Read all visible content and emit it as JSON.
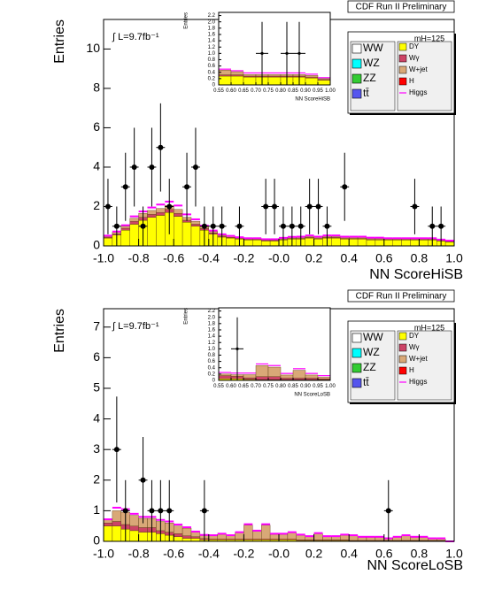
{
  "chart_data": [
    {
      "type": "histogram",
      "title": "CDF Run II Preliminary",
      "x_label": "NN ScoreHiSB",
      "y_label": "Entries",
      "annotation": "∫ L=9.7fb⁻¹",
      "mass_label": "mH=125",
      "bins": [
        -1,
        -0.95,
        -0.9,
        -0.85,
        -0.8,
        -0.75,
        -0.7,
        -0.65,
        -0.6,
        -0.55,
        -0.5,
        -0.45,
        -0.4,
        -0.35,
        -0.3,
        -0.25,
        -0.2,
        -0.15,
        -0.1,
        -0.05,
        0,
        0.05,
        0.1,
        0.15,
        0.2,
        0.25,
        0.3,
        0.35,
        0.4,
        0.45,
        0.5,
        0.55,
        0.6,
        0.65,
        0.7,
        0.75,
        0.8,
        0.85,
        0.9,
        0.95,
        1
      ],
      "xlim": [
        -1,
        1
      ],
      "xticks": [
        {
          "value": -1,
          "label": "-1.0"
        },
        -0.8,
        -0.6,
        -0.4,
        -0.2,
        {
          "value": 0,
          "label": "-0.0"
        },
        0.2,
        0.4,
        0.6,
        0.8,
        {
          "value": 1,
          "label": "1.0"
        }
      ],
      "ylim": [
        0,
        11.5
      ],
      "yticks": [
        0,
        2,
        4,
        6,
        8,
        10
      ],
      "series": [
        {
          "name": "DY",
          "color": "#ffff00",
          "values": [
            0.4,
            0.55,
            0.8,
            1.1,
            1.3,
            1.45,
            1.55,
            1.7,
            1.5,
            1.2,
            1.0,
            0.8,
            0.6,
            0.45,
            0.4,
            0.35,
            0.3,
            0.3,
            0.25,
            0.25,
            0.3,
            0.35,
            0.35,
            0.4,
            0.35,
            0.4,
            0.4,
            0.35,
            0.35,
            0.35,
            0.3,
            0.3,
            0.3,
            0.3,
            0.3,
            0.3,
            0.3,
            0.3,
            0.25,
            0.2
          ]
        },
        {
          "name": "Wγ",
          "color": "#cc4466",
          "values": [
            0.05,
            0.05,
            0.1,
            0.15,
            0.15,
            0.15,
            0.15,
            0.15,
            0.15,
            0.1,
            0.1,
            0.08,
            0.06,
            0.05,
            0.04,
            0.03,
            0.03,
            0.03,
            0.03,
            0.03,
            0.03,
            0.03,
            0.03,
            0.03,
            0.03,
            0.03,
            0.03,
            0.03,
            0.03,
            0.03,
            0.03,
            0.03,
            0.02,
            0.02,
            0.02,
            0.02,
            0.02,
            0.02,
            0.02,
            0.02
          ]
        },
        {
          "name": "W+jet",
          "color": "#d9a877",
          "values": [
            0.05,
            0.1,
            0.1,
            0.15,
            0.2,
            0.2,
            0.2,
            0.2,
            0.2,
            0.15,
            0.15,
            0.1,
            0.08,
            0.06,
            0.05,
            0.04,
            0.04,
            0.04,
            0.04,
            0.04,
            0.05,
            0.05,
            0.05,
            0.05,
            0.05,
            0.05,
            0.05,
            0.05,
            0.05,
            0.05,
            0.05,
            0.05,
            0.04,
            0.04,
            0.04,
            0.04,
            0.04,
            0.04,
            0.03,
            0.03
          ]
        },
        {
          "name": "Higgs",
          "color": "#ff00ff",
          "style": "line",
          "values": [
            0.02,
            0.03,
            0.05,
            0.1,
            0.1,
            0.15,
            0.2,
            0.2,
            0.2,
            0.15,
            0.1,
            0.05,
            0.04,
            0.03,
            0.02,
            0.02,
            0.02,
            0.02,
            0.02,
            0.02,
            0.03,
            0.03,
            0.04,
            0.05,
            0.04,
            0.05,
            0.05,
            0.04,
            0.04,
            0.04,
            0.04,
            0.04,
            0.03,
            0.03,
            0.03,
            0.03,
            0.03,
            0.03,
            0.02,
            0.02
          ]
        }
      ],
      "other_legend": [
        {
          "name": "WW",
          "color": "#ffffff"
        },
        {
          "name": "WZ",
          "color": "#00ffff"
        },
        {
          "name": "ZZ",
          "color": "#33cc33"
        },
        {
          "name": "tt̄",
          "color": "#5555ee"
        },
        {
          "name": "H",
          "color": "#ff0000"
        }
      ],
      "points": {
        "color": "#000000",
        "x": [
          -0.975,
          -0.925,
          -0.875,
          -0.825,
          -0.775,
          -0.725,
          -0.675,
          -0.625,
          -0.525,
          -0.475,
          -0.425,
          -0.375,
          -0.325,
          -0.225,
          -0.075,
          -0.025,
          0.025,
          0.075,
          0.125,
          0.175,
          0.225,
          0.275,
          0.375,
          0.775,
          0.875,
          0.925
        ],
        "y": [
          2,
          1,
          3,
          4,
          1,
          4,
          5,
          2,
          3,
          4,
          1,
          1,
          1,
          1,
          2,
          2,
          1,
          1,
          1,
          2,
          2,
          1,
          3,
          2,
          1,
          1
        ],
        "yerr": [
          1.41,
          1,
          1.73,
          2,
          1,
          2,
          2.24,
          1.41,
          1.73,
          2,
          1,
          1,
          1,
          1,
          1.41,
          1.41,
          1,
          1,
          1,
          1.41,
          1.41,
          1,
          1.73,
          1.41,
          1,
          1
        ]
      }
    },
    {
      "type": "histogram",
      "x_label": "NN ScoreHiSB",
      "y_label": "Entries",
      "bins": [
        0.55,
        0.6,
        0.65,
        0.7,
        0.75,
        0.8,
        0.85,
        0.9,
        0.95,
        1
      ],
      "xlim": [
        0.55,
        1
      ],
      "xticks": [
        0.55,
        {
          "value": 0.6,
          "label": "0.60"
        },
        0.65,
        {
          "value": 0.7,
          "label": "0.70"
        },
        0.75,
        {
          "value": 0.8,
          "label": "0.80"
        },
        0.85,
        {
          "value": 0.9,
          "label": "0.90"
        },
        0.95,
        {
          "value": 1,
          "label": "1.00"
        }
      ],
      "ylim": [
        0,
        2.3
      ],
      "yticks": [
        0,
        0.2,
        0.4,
        0.6,
        0.8,
        {
          "value": 1,
          "label": "1.0"
        },
        1.2,
        1.4,
        1.6,
        1.8,
        {
          "value": 2,
          "label": "2.0"
        },
        2.2
      ],
      "series": [
        {
          "name": "DY",
          "color": "#ffff00",
          "values": [
            0.28,
            0.28,
            0.25,
            0.25,
            0.25,
            0.25,
            0.25,
            0.22,
            0.15
          ]
        },
        {
          "name": "Wγ",
          "color": "#cc4466",
          "values": [
            0.04,
            0.04,
            0.03,
            0.03,
            0.03,
            0.03,
            0.03,
            0.03,
            0.02
          ]
        },
        {
          "name": "W+jet",
          "color": "#d9a877",
          "values": [
            0.15,
            0.1,
            0.05,
            0.05,
            0.05,
            0.05,
            0.05,
            0.05,
            0.03
          ]
        },
        {
          "name": "Higgs",
          "color": "#ff00ff",
          "style": "line",
          "values": [
            0.03,
            0.03,
            0.05,
            0.05,
            0.05,
            0.05,
            0.05,
            0.04,
            0.03
          ]
        }
      ],
      "points": {
        "color": "#000000",
        "x": [
          0.725,
          0.825,
          0.875
        ],
        "y": [
          1,
          1,
          1
        ],
        "yerr": [
          1,
          1,
          1
        ]
      }
    },
    {
      "type": "histogram",
      "title": "CDF Run II Preliminary",
      "x_label": "NN ScoreLoSB",
      "y_label": "Entries",
      "annotation": "∫ L=9.7fb⁻¹",
      "mass_label": "mH=125",
      "bins": [
        -1,
        -0.95,
        -0.9,
        -0.85,
        -0.8,
        -0.75,
        -0.7,
        -0.65,
        -0.6,
        -0.55,
        -0.5,
        -0.45,
        -0.4,
        -0.35,
        -0.3,
        -0.25,
        -0.2,
        -0.15,
        -0.1,
        -0.05,
        0,
        0.05,
        0.1,
        0.15,
        0.2,
        0.25,
        0.3,
        0.35,
        0.4,
        0.45,
        0.5,
        0.55,
        0.6,
        0.65,
        0.7,
        0.75,
        0.8,
        0.85,
        0.9,
        0.95,
        1
      ],
      "xlim": [
        -1,
        1
      ],
      "xticks": [
        {
          "value": -1,
          "label": "-1.0"
        },
        -0.8,
        -0.6,
        -0.4,
        -0.2,
        {
          "value": 0,
          "label": "-0.0"
        },
        0.2,
        0.4,
        0.6,
        0.8,
        {
          "value": 1,
          "label": "1.0"
        }
      ],
      "ylim": [
        0,
        7.6
      ],
      "yticks": [
        0,
        1,
        2,
        3,
        4,
        5,
        6,
        7
      ],
      "series": [
        {
          "name": "DY",
          "color": "#ffff00",
          "values": [
            0.5,
            0.5,
            0.4,
            0.35,
            0.3,
            0.3,
            0.25,
            0.2,
            0.15,
            0.1,
            0.1,
            0.05,
            0.05,
            0.05,
            0.05,
            0.05,
            0.05,
            0.05,
            0.05,
            0.05,
            0.05,
            0.05,
            0.03,
            0.03,
            0.03,
            0.03,
            0.03,
            0.03,
            0.02,
            0.02,
            0.02,
            0.02,
            0.02,
            0.02,
            0.02,
            0.02,
            0.02,
            0.02,
            0.02,
            0
          ]
        },
        {
          "name": "Wγ",
          "color": "#cc4466",
          "values": [
            0.1,
            0.15,
            0.15,
            0.15,
            0.15,
            0.15,
            0.1,
            0.1,
            0.1,
            0.08,
            0.05,
            0.04,
            0.03,
            0.03,
            0.03,
            0.03,
            0.03,
            0.03,
            0.03,
            0.03,
            0.03,
            0.03,
            0.02,
            0.02,
            0.02,
            0.02,
            0.02,
            0.02,
            0.01,
            0.01,
            0.01,
            0.01,
            0.01,
            0.01,
            0.01,
            0.01,
            0.01,
            0.01,
            0.01,
            0
          ]
        },
        {
          "name": "W+jet",
          "color": "#d9a877",
          "values": [
            0.1,
            0.35,
            0.4,
            0.35,
            0.3,
            0.3,
            0.3,
            0.3,
            0.25,
            0.25,
            0.15,
            0.1,
            0.1,
            0.15,
            0.1,
            0.2,
            0.45,
            0.25,
            0.45,
            0.15,
            0.15,
            0.2,
            0.15,
            0.1,
            0.2,
            0.1,
            0.1,
            0.15,
            0.15,
            0.1,
            0.1,
            0.1,
            0.05,
            0.1,
            0.15,
            0.1,
            0.1,
            0.05,
            0.05,
            0
          ]
        },
        {
          "name": "Higgs",
          "color": "#ff00ff",
          "style": "line",
          "values": [
            0.02,
            0.1,
            0.1,
            0.05,
            0.05,
            0.05,
            0.05,
            0.05,
            0.05,
            0.03,
            0.02,
            0.02,
            0.02,
            0.02,
            0.02,
            0.02,
            0.03,
            0.02,
            0.03,
            0.02,
            0.02,
            0.02,
            0.02,
            0.02,
            0.02,
            0.02,
            0.02,
            0.02,
            0.02,
            0.02,
            0.02,
            0.02,
            0.02,
            0.02,
            0.02,
            0.02,
            0.02,
            0.02,
            0.02,
            0
          ]
        }
      ],
      "other_legend": [
        {
          "name": "WW",
          "color": "#ffffff"
        },
        {
          "name": "WZ",
          "color": "#00ffff"
        },
        {
          "name": "ZZ",
          "color": "#33cc33"
        },
        {
          "name": "tt̄",
          "color": "#5555ee"
        },
        {
          "name": "H",
          "color": "#ff0000"
        }
      ],
      "points": {
        "color": "#000000",
        "x": [
          -0.925,
          -0.875,
          -0.775,
          -0.725,
          -0.675,
          -0.625,
          -0.425,
          0.625
        ],
        "y": [
          3,
          1,
          2,
          1,
          1,
          1,
          1,
          1
        ],
        "yerr": [
          1.73,
          1,
          1.41,
          1,
          1,
          1,
          1,
          1
        ]
      }
    },
    {
      "type": "histogram",
      "x_label": "NN ScoreLoSB",
      "y_label": "Entries",
      "bins": [
        0.55,
        0.6,
        0.65,
        0.7,
        0.75,
        0.8,
        0.85,
        0.9,
        0.95,
        1
      ],
      "xlim": [
        0.55,
        1
      ],
      "xticks": [
        0.55,
        {
          "value": 0.6,
          "label": "0.60"
        },
        0.65,
        {
          "value": 0.7,
          "label": "0.70"
        },
        0.75,
        {
          "value": 0.8,
          "label": "0.80"
        },
        0.85,
        {
          "value": 0.9,
          "label": "0.90"
        },
        0.95,
        {
          "value": 1,
          "label": "1.00"
        }
      ],
      "ylim": [
        0,
        2.3
      ],
      "yticks": [
        0,
        0.2,
        0.4,
        0.6,
        0.8,
        {
          "value": 1,
          "label": "1.0"
        },
        1.2,
        1.4,
        1.6,
        1.8,
        {
          "value": 2,
          "label": "2.0"
        },
        2.2
      ],
      "series": [
        {
          "name": "DY",
          "color": "#ffff00",
          "values": [
            0.05,
            0.05,
            0.03,
            0.02,
            0.02,
            0.02,
            0.02,
            0.02,
            0.02
          ]
        },
        {
          "name": "Wγ",
          "color": "#cc4466",
          "values": [
            0.1,
            0.08,
            0.05,
            0.1,
            0.1,
            0.05,
            0.05,
            0.05,
            0.03
          ]
        },
        {
          "name": "W+jet",
          "color": "#d9a877",
          "values": [
            0.05,
            0.05,
            0.1,
            0.35,
            0.3,
            0.1,
            0.25,
            0.1,
            0.05
          ]
        },
        {
          "name": "Higgs",
          "color": "#ff00ff",
          "style": "line",
          "values": [
            0.05,
            0.05,
            0.05,
            0.05,
            0.05,
            0.05,
            0.05,
            0.05,
            0.05
          ]
        }
      ],
      "points": {
        "color": "#000000",
        "x": [
          0.625
        ],
        "y": [
          1
        ],
        "yerr": [
          1
        ]
      }
    }
  ]
}
